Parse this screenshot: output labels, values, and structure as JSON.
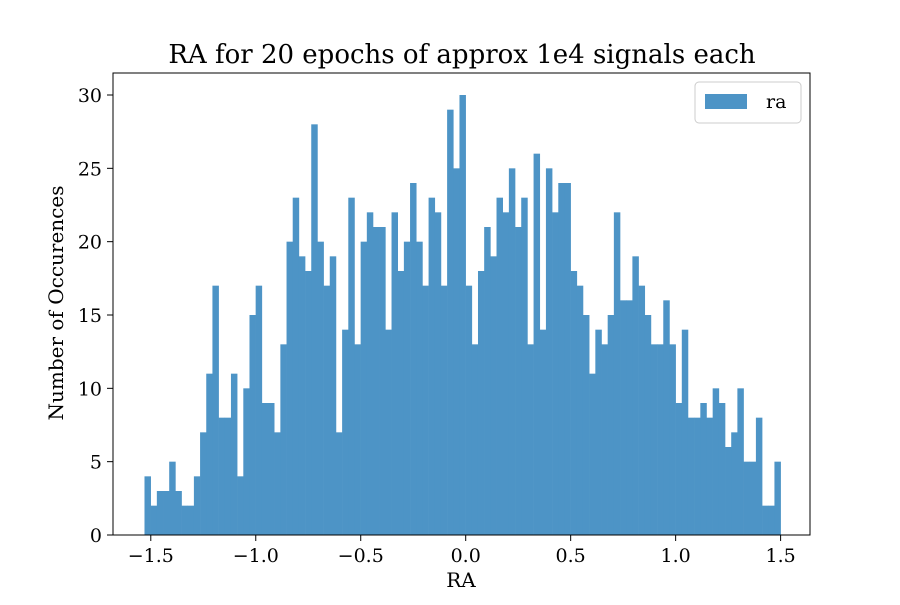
{
  "chart_data": {
    "type": "bar",
    "title": "RA for 20 epochs of approx 1e4 signals each",
    "xlabel": "RA",
    "ylabel": "Number of Occurences",
    "xlim": [
      -1.68,
      1.64
    ],
    "ylim": [
      0,
      31.5
    ],
    "xticks": [
      -1.5,
      -1.0,
      -0.5,
      0.0,
      0.5,
      1.0,
      1.5
    ],
    "xtick_labels": [
      "−1.5",
      "−1.0",
      "−0.5",
      "0.0",
      "0.5",
      "1.0",
      "1.5"
    ],
    "yticks": [
      0,
      5,
      10,
      15,
      20,
      25,
      30
    ],
    "ytick_labels": [
      "0",
      "5",
      "10",
      "15",
      "20",
      "25",
      "30"
    ],
    "grid": false,
    "legend": {
      "position": "top-right",
      "entries": [
        "ra"
      ]
    },
    "bin_start": -1.53,
    "bin_end": 1.5,
    "series": [
      {
        "name": "ra",
        "color": "#4d94c6",
        "values": [
          4,
          2,
          3,
          3,
          5,
          3,
          2,
          2,
          4,
          7,
          11,
          17,
          8,
          8,
          11,
          4,
          10,
          15,
          17,
          9,
          9,
          7,
          13,
          20,
          23,
          19,
          18,
          28,
          20,
          17,
          19,
          7,
          14,
          23,
          13,
          20,
          22,
          21,
          21,
          14,
          22,
          18,
          20,
          24,
          20,
          17,
          23,
          22,
          17,
          29,
          25,
          30,
          17,
          13,
          18,
          21,
          19,
          23,
          22,
          25,
          21,
          23,
          13,
          26,
          14,
          25,
          22,
          24,
          24,
          18,
          17,
          15,
          11,
          14,
          13,
          15,
          22,
          16,
          16,
          19,
          17,
          15,
          13,
          13,
          16,
          13,
          9,
          14,
          8,
          8,
          9,
          8,
          10,
          9,
          6,
          7,
          10,
          5,
          5,
          8,
          2,
          2,
          5
        ]
      }
    ]
  }
}
